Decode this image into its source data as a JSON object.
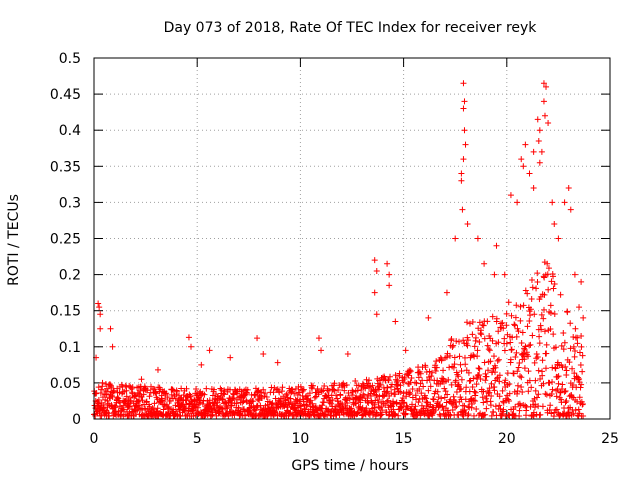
{
  "chart_data": {
    "type": "scatter",
    "title": "Day 073 of 2018, Rate Of TEC Index for receiver reyk",
    "xlabel": "GPS time / hours",
    "ylabel": "ROTI / TECUs",
    "xlim": [
      0,
      25
    ],
    "ylim": [
      0,
      0.5
    ],
    "xticks": [
      0,
      5,
      10,
      15,
      20,
      25
    ],
    "yticks": [
      0,
      0.05,
      0.1,
      0.15,
      0.2,
      0.25,
      0.3,
      0.35,
      0.4,
      0.45,
      0.5
    ],
    "xtick_labels": [
      "0",
      "5",
      "10",
      "15",
      "20",
      "25"
    ],
    "ytick_labels": [
      "0",
      "0.05",
      "0.1",
      "0.15",
      "0.2",
      "0.25",
      "0.3",
      "0.35",
      "0.4",
      "0.45",
      "0.5"
    ],
    "grid": true,
    "marker": "plus",
    "color": "#ff0000",
    "profile": [
      {
        "x": 0.0,
        "y": 0.045
      },
      {
        "x": 1.0,
        "y": 0.04
      },
      {
        "x": 4.0,
        "y": 0.035
      },
      {
        "x": 7.0,
        "y": 0.035
      },
      {
        "x": 10.0,
        "y": 0.038
      },
      {
        "x": 13.0,
        "y": 0.045
      },
      {
        "x": 15.0,
        "y": 0.055
      },
      {
        "x": 16.5,
        "y": 0.07
      },
      {
        "x": 18.0,
        "y": 0.12
      },
      {
        "x": 19.5,
        "y": 0.13
      },
      {
        "x": 21.0,
        "y": 0.17
      },
      {
        "x": 22.0,
        "y": 0.2
      },
      {
        "x": 23.0,
        "y": 0.13
      },
      {
        "x": 23.7,
        "y": 0.09
      }
    ],
    "points": [
      {
        "x": 0.2,
        "y": 0.16
      },
      {
        "x": 0.25,
        "y": 0.155
      },
      {
        "x": 0.3,
        "y": 0.145
      },
      {
        "x": 0.3,
        "y": 0.125
      },
      {
        "x": 0.8,
        "y": 0.125
      },
      {
        "x": 0.9,
        "y": 0.1
      },
      {
        "x": 0.1,
        "y": 0.085
      },
      {
        "x": 2.3,
        "y": 0.055
      },
      {
        "x": 3.1,
        "y": 0.068
      },
      {
        "x": 4.6,
        "y": 0.113
      },
      {
        "x": 4.7,
        "y": 0.1
      },
      {
        "x": 5.2,
        "y": 0.075
      },
      {
        "x": 5.6,
        "y": 0.095
      },
      {
        "x": 6.6,
        "y": 0.085
      },
      {
        "x": 7.9,
        "y": 0.112
      },
      {
        "x": 8.2,
        "y": 0.09
      },
      {
        "x": 8.9,
        "y": 0.078
      },
      {
        "x": 10.9,
        "y": 0.112
      },
      {
        "x": 11.0,
        "y": 0.095
      },
      {
        "x": 12.3,
        "y": 0.09
      },
      {
        "x": 13.6,
        "y": 0.22
      },
      {
        "x": 13.7,
        "y": 0.205
      },
      {
        "x": 13.6,
        "y": 0.175
      },
      {
        "x": 13.7,
        "y": 0.145
      },
      {
        "x": 14.2,
        "y": 0.215
      },
      {
        "x": 14.3,
        "y": 0.2
      },
      {
        "x": 14.3,
        "y": 0.185
      },
      {
        "x": 14.6,
        "y": 0.135
      },
      {
        "x": 15.1,
        "y": 0.095
      },
      {
        "x": 16.2,
        "y": 0.14
      },
      {
        "x": 17.1,
        "y": 0.175
      },
      {
        "x": 17.5,
        "y": 0.25
      },
      {
        "x": 17.9,
        "y": 0.465
      },
      {
        "x": 17.95,
        "y": 0.44
      },
      {
        "x": 17.9,
        "y": 0.43
      },
      {
        "x": 17.95,
        "y": 0.4
      },
      {
        "x": 18.0,
        "y": 0.38
      },
      {
        "x": 17.9,
        "y": 0.36
      },
      {
        "x": 17.8,
        "y": 0.34
      },
      {
        "x": 17.8,
        "y": 0.33
      },
      {
        "x": 17.85,
        "y": 0.29
      },
      {
        "x": 18.1,
        "y": 0.27
      },
      {
        "x": 18.6,
        "y": 0.25
      },
      {
        "x": 18.9,
        "y": 0.215
      },
      {
        "x": 19.4,
        "y": 0.2
      },
      {
        "x": 19.5,
        "y": 0.24
      },
      {
        "x": 19.9,
        "y": 0.2
      },
      {
        "x": 20.2,
        "y": 0.31
      },
      {
        "x": 20.5,
        "y": 0.3
      },
      {
        "x": 20.7,
        "y": 0.36
      },
      {
        "x": 20.8,
        "y": 0.35
      },
      {
        "x": 20.9,
        "y": 0.38
      },
      {
        "x": 21.1,
        "y": 0.34
      },
      {
        "x": 21.3,
        "y": 0.37
      },
      {
        "x": 21.3,
        "y": 0.32
      },
      {
        "x": 21.5,
        "y": 0.415
      },
      {
        "x": 21.6,
        "y": 0.4
      },
      {
        "x": 21.55,
        "y": 0.385
      },
      {
        "x": 21.7,
        "y": 0.37
      },
      {
        "x": 21.6,
        "y": 0.355
      },
      {
        "x": 21.8,
        "y": 0.465
      },
      {
        "x": 21.9,
        "y": 0.46
      },
      {
        "x": 21.8,
        "y": 0.44
      },
      {
        "x": 21.85,
        "y": 0.42
      },
      {
        "x": 22.0,
        "y": 0.41
      },
      {
        "x": 22.2,
        "y": 0.3
      },
      {
        "x": 22.3,
        "y": 0.27
      },
      {
        "x": 22.5,
        "y": 0.25
      },
      {
        "x": 22.8,
        "y": 0.3
      },
      {
        "x": 23.0,
        "y": 0.32
      },
      {
        "x": 23.1,
        "y": 0.29
      },
      {
        "x": 23.3,
        "y": 0.2
      },
      {
        "x": 23.6,
        "y": 0.19
      },
      {
        "x": 23.5,
        "y": 0.155
      },
      {
        "x": 23.7,
        "y": 0.14
      },
      {
        "x": 23.6,
        "y": 0.115
      }
    ]
  }
}
